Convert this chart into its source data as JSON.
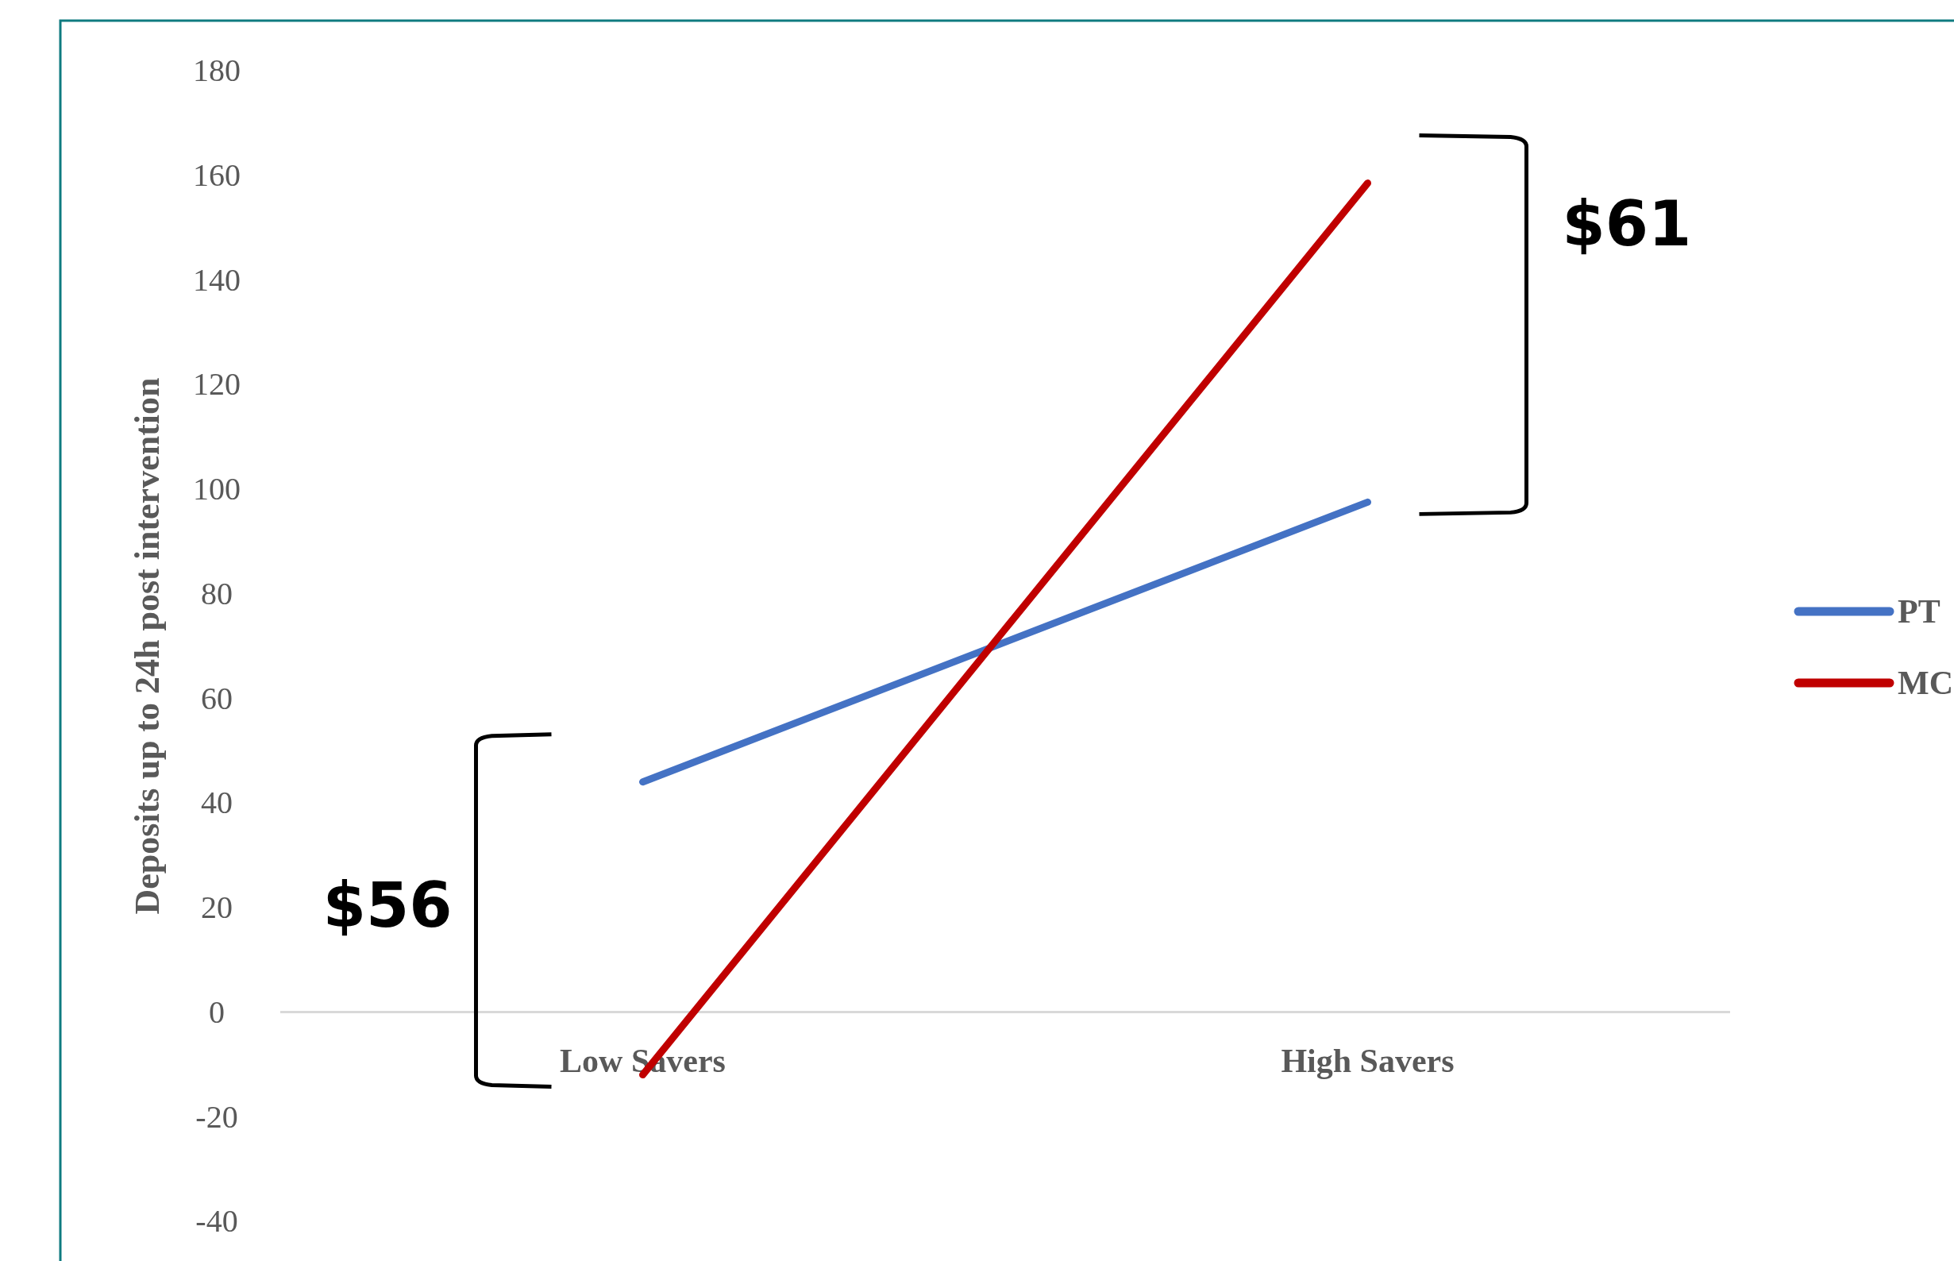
{
  "chart_data": {
    "type": "line",
    "ylabel": "Deposits up to 24h post intervention",
    "categories": [
      "Low Savers",
      "High Savers"
    ],
    "series": [
      {
        "name": "PT",
        "color": "#4472c4",
        "values": [
          44,
          97.5
        ]
      },
      {
        "name": "MC",
        "color": "#c00000",
        "values": [
          -12,
          158.5
        ]
      }
    ],
    "ylim": [
      -40,
      180
    ],
    "yticks": [
      -40,
      -20,
      0,
      20,
      40,
      60,
      80,
      100,
      120,
      140,
      160,
      180
    ],
    "annotations": [
      "$56",
      "$61"
    ],
    "legend": "right",
    "grid": false,
    "marker": "none",
    "line_style": "solid"
  }
}
